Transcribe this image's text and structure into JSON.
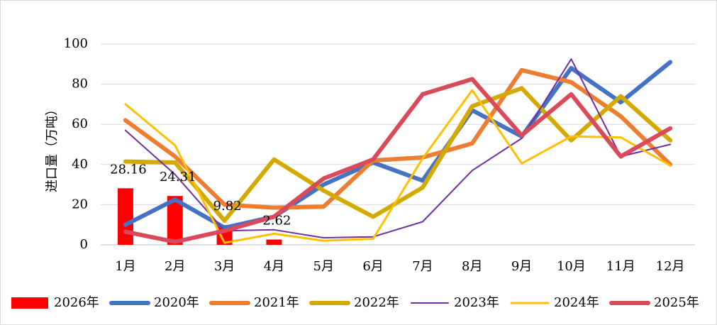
{
  "chart_data": {
    "type": "bar+line",
    "title": "",
    "xlabel": "",
    "ylabel": "进口量（万吨）",
    "ylim": [
      0,
      100
    ],
    "yticks": [
      0,
      20,
      40,
      60,
      80,
      100
    ],
    "grid": true,
    "legend_position": "bottom",
    "categories": [
      "1月",
      "2月",
      "3月",
      "4月",
      "5月",
      "6月",
      "7月",
      "8月",
      "9月",
      "10月",
      "11月",
      "12月"
    ],
    "bar_series": {
      "name": "2026年",
      "color": "#ff0000",
      "values": [
        28.16,
        24.31,
        9.82,
        2.62
      ],
      "labels": [
        "28.16",
        "24.31",
        "9.82",
        "2.62"
      ]
    },
    "series": [
      {
        "name": "2020年",
        "color": "#4472c4",
        "width": "thick",
        "values": [
          10,
          22.5,
          8.5,
          14,
          30,
          41,
          32,
          67,
          54,
          88,
          71,
          91
        ]
      },
      {
        "name": "2021年",
        "color": "#ed7d31",
        "width": "thick",
        "values": [
          62,
          44,
          20,
          18.5,
          19,
          42,
          43.5,
          50.5,
          87,
          81,
          64,
          40
        ]
      },
      {
        "name": "2022年",
        "color": "#d4aa00",
        "width": "thick",
        "values": [
          41.5,
          41,
          12,
          42.5,
          27,
          14,
          28.5,
          69,
          78,
          52,
          74,
          52
        ]
      },
      {
        "name": "2023年",
        "color": "#7030a0",
        "width": "thin",
        "values": [
          57,
          35,
          7,
          7.5,
          3.5,
          4,
          11.5,
          37,
          53,
          92.5,
          44,
          50
        ]
      },
      {
        "name": "2024年",
        "color": "#ffc000",
        "width": "medium",
        "values": [
          70,
          49.5,
          1,
          5.5,
          2,
          3,
          43,
          77,
          40.5,
          54,
          53.5,
          39.5
        ]
      },
      {
        "name": "2025年",
        "color": "#d94a5b",
        "width": "thick",
        "values": [
          6.5,
          1.5,
          7,
          14,
          33,
          42.5,
          75,
          82.5,
          54.5,
          75,
          44,
          58
        ]
      }
    ]
  }
}
